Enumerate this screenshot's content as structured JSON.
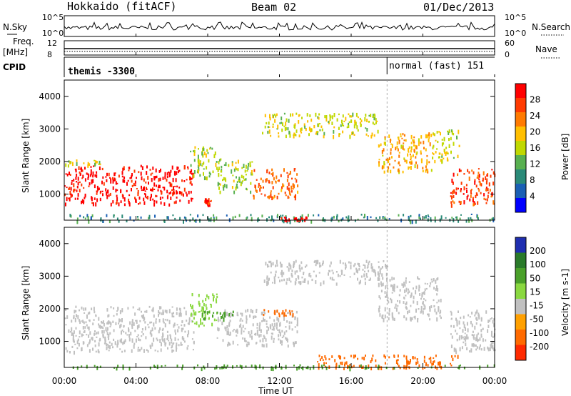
{
  "header": {
    "station": "Hokkaido (fitACF)",
    "beam": "Beam 02",
    "date": "01/Dec/2013"
  },
  "top_panels": {
    "nsky_label": "N.Sky",
    "nsky_ticks": [
      "10^5",
      "10^0"
    ],
    "nsearch_label": "N.Search",
    "nsearch_ticks": [
      "10^5",
      "10^0"
    ],
    "freq_label": "Freq.",
    "freq_unit": "[MHz]",
    "freq_ticks": [
      "12",
      "8"
    ],
    "nave_label": "Nave",
    "nave_ticks": [
      "60",
      "0"
    ],
    "cpid_label": "CPID",
    "cpid_entries": [
      {
        "text": "themis -3300",
        "start_hour": 0
      },
      {
        "text": "normal (fast) 151",
        "start_hour": 18
      }
    ]
  },
  "time_axis": {
    "label": "Time UT",
    "ticks": [
      "00:00",
      "04:00",
      "08:00",
      "12:00",
      "16:00",
      "20:00",
      "00:00"
    ]
  },
  "power_colorbar": {
    "label": "Power [dB]",
    "ticks": [
      "28",
      "24",
      "20",
      "16",
      "12",
      "8",
      "4"
    ],
    "colors": [
      "#ff0000",
      "#ff3a00",
      "#ff7a00",
      "#ffbf00",
      "#c0d800",
      "#58b050",
      "#2a8a78",
      "#1a5fb4",
      "#0000ff"
    ]
  },
  "velocity_colorbar": {
    "label": "Velocity [m s-1]",
    "ticks": [
      "200",
      "100",
      "50",
      "15",
      "-15",
      "-50",
      "-100",
      "-200"
    ],
    "colors": [
      "#1f2eb0",
      "#2a7a2a",
      "#4aa02a",
      "#8ad840",
      "#c0c0c0",
      "#ffa000",
      "#ff6a00",
      "#ff2a00"
    ]
  },
  "chart_data": [
    {
      "type": "heatmap",
      "title": "Power",
      "xlabel": "Time UT",
      "ylabel": "Slant Range [km]",
      "xlim": [
        0,
        24
      ],
      "ylim": [
        200,
        4500
      ],
      "yticks": [
        "1000",
        "2000",
        "3000",
        "4000"
      ],
      "colorbar_range_db": [
        0,
        30
      ],
      "regions": [
        {
          "t0": 0.0,
          "t1": 7.2,
          "r0": 700,
          "r1": 1900,
          "power_db": 30
        },
        {
          "t0": 0.0,
          "t1": 2.0,
          "r0": 1900,
          "r1": 2100,
          "power_db": 16
        },
        {
          "t0": 7.0,
          "t1": 8.5,
          "r0": 1500,
          "r1": 2500,
          "power_db": 14
        },
        {
          "t0": 8.5,
          "t1": 10.5,
          "r0": 1100,
          "r1": 2100,
          "power_db": 14
        },
        {
          "t0": 10.5,
          "t1": 13.0,
          "r0": 900,
          "r1": 1800,
          "power_db": 24
        },
        {
          "t0": 11.0,
          "t1": 17.5,
          "r0": 2800,
          "r1": 3500,
          "power_db": 16
        },
        {
          "t0": 17.5,
          "t1": 20.5,
          "r0": 1700,
          "r1": 2900,
          "power_db": 20
        },
        {
          "t0": 20.5,
          "t1": 22.0,
          "r0": 2000,
          "r1": 3000,
          "power_db": 16
        },
        {
          "t0": 21.5,
          "t1": 24.0,
          "r0": 700,
          "r1": 1800,
          "power_db": 26
        },
        {
          "t0": 7.8,
          "t1": 8.2,
          "r0": 700,
          "r1": 900,
          "power_db": 28
        },
        {
          "t0": 0.0,
          "t1": 24.0,
          "r0": 200,
          "r1": 400,
          "power_db": 8
        },
        {
          "t0": 12.0,
          "t1": 13.5,
          "r0": 200,
          "r1": 330,
          "power_db": 30
        }
      ]
    },
    {
      "type": "heatmap",
      "title": "Velocity",
      "xlabel": "Time UT",
      "ylabel": "Slant Range [km]",
      "xlim": [
        0,
        24
      ],
      "ylim": [
        200,
        4500
      ],
      "yticks": [
        "1000",
        "2000",
        "3000",
        "4000"
      ],
      "colorbar_range_ms": [
        -200,
        200
      ],
      "regions": [
        {
          "t0": 0.0,
          "t1": 7.2,
          "r0": 700,
          "r1": 2100,
          "velocity_ms": 0
        },
        {
          "t0": 7.0,
          "t1": 8.5,
          "r0": 1500,
          "r1": 2500,
          "velocity_ms": 20
        },
        {
          "t0": 8.5,
          "t1": 13.0,
          "r0": 900,
          "r1": 2000,
          "velocity_ms": 0
        },
        {
          "t0": 11.0,
          "t1": 18.0,
          "r0": 2800,
          "r1": 3500,
          "velocity_ms": 0
        },
        {
          "t0": 17.5,
          "t1": 21.0,
          "r0": 1700,
          "r1": 3000,
          "velocity_ms": 0
        },
        {
          "t0": 21.5,
          "t1": 24.0,
          "r0": 700,
          "r1": 2000,
          "velocity_ms": 0
        },
        {
          "t0": 14.0,
          "t1": 22.0,
          "r0": 200,
          "r1": 600,
          "velocity_ms": -60
        },
        {
          "t0": 11.0,
          "t1": 13.0,
          "r0": 1800,
          "r1": 2000,
          "velocity_ms": -60
        },
        {
          "t0": 7.5,
          "t1": 9.5,
          "r0": 1700,
          "r1": 2000,
          "velocity_ms": 40
        },
        {
          "t0": 0.0,
          "t1": 24.0,
          "r0": 200,
          "r1": 300,
          "velocity_ms": 40
        }
      ]
    }
  ]
}
